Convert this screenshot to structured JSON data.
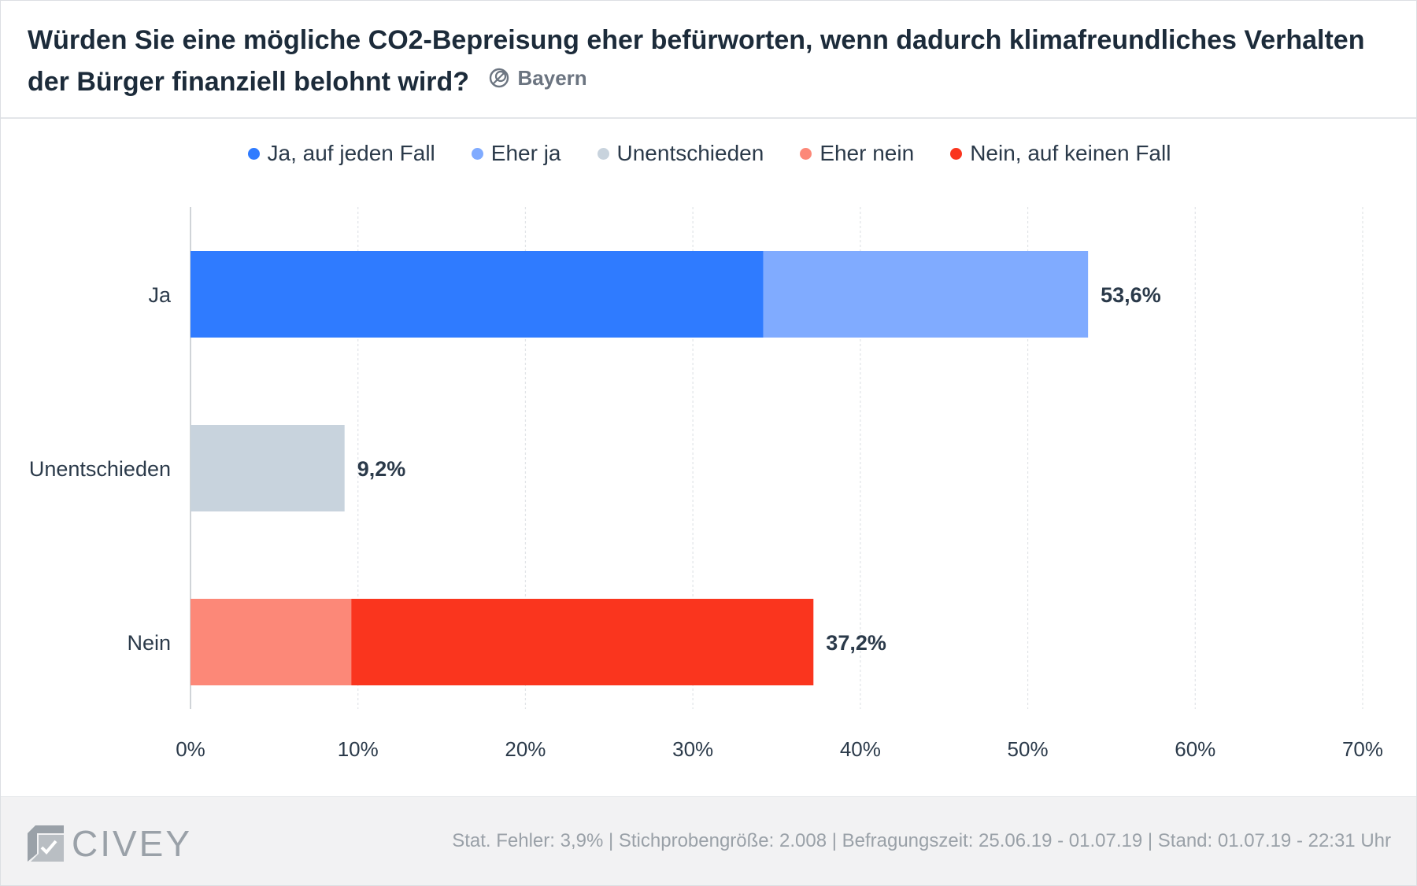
{
  "header": {
    "title": "Würden Sie eine mögliche CO2-Bepreisung eher befürworten, wenn dadurch klimafreundliches Verhalten der Bürger finanziell belohnt wird?",
    "region": "Bayern",
    "region_icon": "globe-region-icon"
  },
  "chart_data": {
    "type": "bar",
    "orientation": "horizontal",
    "stacked": true,
    "categories": [
      "Ja",
      "Unentschieden",
      "Nein"
    ],
    "series": [
      {
        "name": "Ja, auf jeden Fall",
        "color": "#2f7bff",
        "values": [
          34.2,
          0,
          0
        ]
      },
      {
        "name": "Eher ja",
        "color": "#80abff",
        "values": [
          19.4,
          0,
          0
        ]
      },
      {
        "name": "Unentschieden",
        "color": "#c8d3dd",
        "values": [
          0,
          9.2,
          0
        ]
      },
      {
        "name": "Eher nein",
        "color": "#fc8878",
        "values": [
          0,
          0,
          9.6
        ]
      },
      {
        "name": "Nein, auf keinen Fall",
        "color": "#fa351e",
        "values": [
          0,
          0,
          27.6
        ]
      }
    ],
    "totals": [
      "53,6%",
      "9,2%",
      "37,2%"
    ],
    "xlim": [
      0,
      70
    ],
    "xticks": [
      "0%",
      "10%",
      "20%",
      "30%",
      "40%",
      "50%",
      "60%",
      "70%"
    ],
    "xtick_values": [
      0,
      10,
      20,
      30,
      40,
      50,
      60,
      70
    ],
    "grid": true,
    "legend_position": "top"
  },
  "footer": {
    "logo_text": "CIVEY",
    "meta": "Stat. Fehler: 3,9% | Stichprobengröße: 2.008 | Befragungszeit: 25.06.19 - 01.07.19 | Stand: 01.07.19 - 22:31 Uhr"
  }
}
